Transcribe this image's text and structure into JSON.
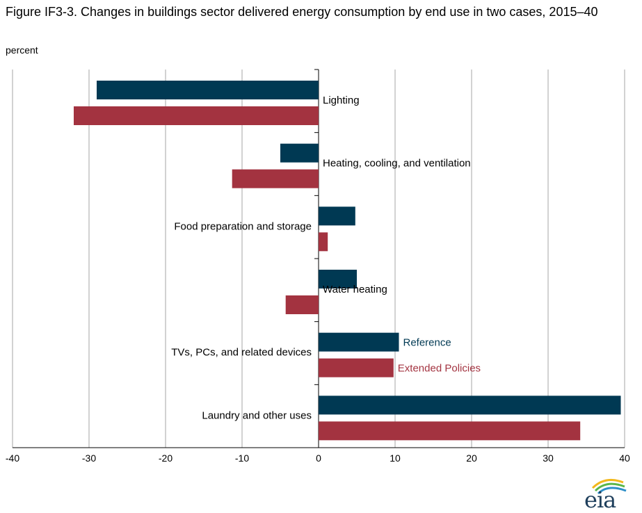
{
  "chart_data": {
    "type": "bar",
    "orientation": "horizontal",
    "title": "Figure IF3-3. Changes in buildings sector delivered energy consumption by end use in two cases, 2015–40",
    "ylabel": "percent",
    "categories": [
      "Lighting",
      "Heating, cooling, and ventilation",
      "Food preparation and storage",
      "Water heating",
      "TVs, PCs, and related devices",
      "Laundry and other uses"
    ],
    "series": [
      {
        "name": "Reference",
        "color": "#003953",
        "values": [
          -29,
          -5,
          4.8,
          5,
          10.5,
          39.5
        ]
      },
      {
        "name": "Extended Policies",
        "color": "#a33340",
        "values": [
          -32,
          -11.3,
          1.2,
          -4.3,
          9.8,
          34.2
        ]
      }
    ],
    "xlim": [
      -40,
      40
    ],
    "xticks": [
      "-40",
      "-30",
      "-20",
      "-10",
      "0",
      "10",
      "20",
      "30",
      "40"
    ],
    "grid": true,
    "legend": "inline"
  },
  "source_logo": "eia"
}
